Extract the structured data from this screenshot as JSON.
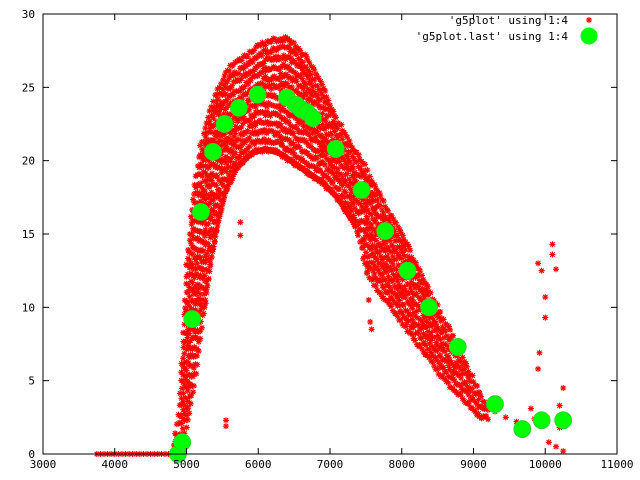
{
  "chart_data": {
    "type": "scatter",
    "title": "",
    "xlabel": "",
    "ylabel": "",
    "xlim": [
      3000,
      11000
    ],
    "ylim": [
      0,
      30
    ],
    "xticks": [
      3000,
      4000,
      5000,
      6000,
      7000,
      8000,
      9000,
      10000,
      11000
    ],
    "yticks": [
      0,
      5,
      10,
      15,
      20,
      25,
      30
    ],
    "grid": false,
    "legend_position": "top-right",
    "colors": {
      "series1": "#ff0000",
      "series2": "#00ff00",
      "axis": "#000000",
      "background": "#ffffff"
    },
    "series": [
      {
        "name": "'g5plot' using 1:4",
        "marker": "asterisk",
        "upper_envelope": [
          [
            4800,
            0
          ],
          [
            4900,
            3
          ],
          [
            4950,
            8
          ],
          [
            5000,
            13
          ],
          [
            5100,
            18
          ],
          [
            5200,
            21
          ],
          [
            5300,
            23
          ],
          [
            5400,
            24.5
          ],
          [
            5500,
            25.5
          ],
          [
            5600,
            26.3
          ],
          [
            5800,
            27
          ],
          [
            6000,
            27.8
          ],
          [
            6200,
            28.2
          ],
          [
            6400,
            28.3
          ],
          [
            6500,
            28
          ],
          [
            6700,
            26.8
          ],
          [
            6900,
            25
          ],
          [
            7100,
            22.8
          ],
          [
            7300,
            21
          ],
          [
            7500,
            19.5
          ],
          [
            7700,
            17.5
          ],
          [
            8000,
            15
          ],
          [
            8300,
            12
          ],
          [
            8600,
            9
          ],
          [
            8800,
            7.2
          ],
          [
            9000,
            5
          ],
          [
            9200,
            3
          ]
        ],
        "lower_envelope": [
          [
            4800,
            0
          ],
          [
            4950,
            1
          ],
          [
            5050,
            3
          ],
          [
            5150,
            6
          ],
          [
            5250,
            10
          ],
          [
            5350,
            13.5
          ],
          [
            5450,
            16
          ],
          [
            5550,
            18
          ],
          [
            5700,
            19.5
          ],
          [
            5900,
            20.5
          ],
          [
            6100,
            20.8
          ],
          [
            6300,
            20.5
          ],
          [
            6600,
            19.5
          ],
          [
            6900,
            18.5
          ],
          [
            7100,
            17.5
          ],
          [
            7300,
            16
          ],
          [
            7400,
            15
          ],
          [
            7500,
            12.5
          ],
          [
            7700,
            11
          ],
          [
            8000,
            9
          ],
          [
            8300,
            7
          ],
          [
            8600,
            5
          ],
          [
            8900,
            3.5
          ],
          [
            9100,
            2.5
          ]
        ],
        "points": [
          {
            "x": 3750,
            "y": 0
          },
          {
            "x": 3800,
            "y": 0
          },
          {
            "x": 3850,
            "y": 0
          },
          {
            "x": 3900,
            "y": 0
          },
          {
            "x": 3950,
            "y": 0
          },
          {
            "x": 4000,
            "y": 0
          },
          {
            "x": 4050,
            "y": 0
          },
          {
            "x": 4100,
            "y": 0
          },
          {
            "x": 4150,
            "y": 0
          },
          {
            "x": 4200,
            "y": 0
          },
          {
            "x": 4250,
            "y": 0
          },
          {
            "x": 4300,
            "y": 0
          },
          {
            "x": 4350,
            "y": 0
          },
          {
            "x": 4400,
            "y": 0
          },
          {
            "x": 4450,
            "y": 0
          },
          {
            "x": 4500,
            "y": 0
          },
          {
            "x": 4550,
            "y": 0
          },
          {
            "x": 4600,
            "y": 0
          },
          {
            "x": 4650,
            "y": 0
          },
          {
            "x": 4700,
            "y": 0
          },
          {
            "x": 4750,
            "y": 0
          },
          {
            "x": 4800,
            "y": 0
          },
          {
            "x": 5550,
            "y": 2.3
          },
          {
            "x": 5550,
            "y": 1.9
          },
          {
            "x": 5750,
            "y": 15.8
          },
          {
            "x": 5750,
            "y": 14.9
          },
          {
            "x": 6800,
            "y": 21.6
          },
          {
            "x": 6900,
            "y": 20.8
          },
          {
            "x": 7000,
            "y": 19.7
          },
          {
            "x": 7450,
            "y": 17.8
          },
          {
            "x": 7480,
            "y": 16.6
          },
          {
            "x": 7500,
            "y": 14.9
          },
          {
            "x": 7520,
            "y": 12.8
          },
          {
            "x": 7540,
            "y": 10.5
          },
          {
            "x": 7560,
            "y": 9.0
          },
          {
            "x": 7580,
            "y": 8.5
          },
          {
            "x": 9100,
            "y": 3.2
          },
          {
            "x": 9300,
            "y": 2.9
          },
          {
            "x": 9450,
            "y": 2.5
          },
          {
            "x": 9600,
            "y": 2.2
          },
          {
            "x": 9800,
            "y": 3.1
          },
          {
            "x": 9850,
            "y": 2.4
          },
          {
            "x": 9900,
            "y": 5.8
          },
          {
            "x": 9920,
            "y": 6.9
          },
          {
            "x": 10000,
            "y": 9.3
          },
          {
            "x": 10000,
            "y": 10.7
          },
          {
            "x": 9900,
            "y": 13.0
          },
          {
            "x": 9950,
            "y": 12.5
          },
          {
            "x": 10100,
            "y": 13.6
          },
          {
            "x": 10100,
            "y": 14.3
          },
          {
            "x": 10150,
            "y": 12.6
          },
          {
            "x": 10200,
            "y": 1.8
          },
          {
            "x": 10250,
            "y": 2.0
          },
          {
            "x": 10200,
            "y": 3.3
          },
          {
            "x": 10250,
            "y": 4.5
          },
          {
            "x": 10250,
            "y": 0.2
          },
          {
            "x": 10150,
            "y": 0.5
          },
          {
            "x": 10050,
            "y": 0.8
          }
        ]
      },
      {
        "name": "'g5plot.last' using 1:4",
        "marker": "filled-circle",
        "points": [
          {
            "x": 4880,
            "y": 0
          },
          {
            "x": 4940,
            "y": 0.8
          },
          {
            "x": 5080,
            "y": 9.2
          },
          {
            "x": 5200,
            "y": 16.5
          },
          {
            "x": 5370,
            "y": 20.6
          },
          {
            "x": 5530,
            "y": 22.5
          },
          {
            "x": 5730,
            "y": 23.6
          },
          {
            "x": 5990,
            "y": 24.5
          },
          {
            "x": 6400,
            "y": 24.3
          },
          {
            "x": 6530,
            "y": 23.8
          },
          {
            "x": 6600,
            "y": 23.5
          },
          {
            "x": 6680,
            "y": 23.3
          },
          {
            "x": 6760,
            "y": 22.9
          },
          {
            "x": 7080,
            "y": 20.8
          },
          {
            "x": 7440,
            "y": 18.0
          },
          {
            "x": 7770,
            "y": 15.2
          },
          {
            "x": 8080,
            "y": 12.5
          },
          {
            "x": 8380,
            "y": 10.0
          },
          {
            "x": 8780,
            "y": 7.3
          },
          {
            "x": 9300,
            "y": 3.4
          },
          {
            "x": 9680,
            "y": 1.7
          },
          {
            "x": 9950,
            "y": 2.3
          },
          {
            "x": 10250,
            "y": 2.3
          }
        ]
      }
    ]
  }
}
